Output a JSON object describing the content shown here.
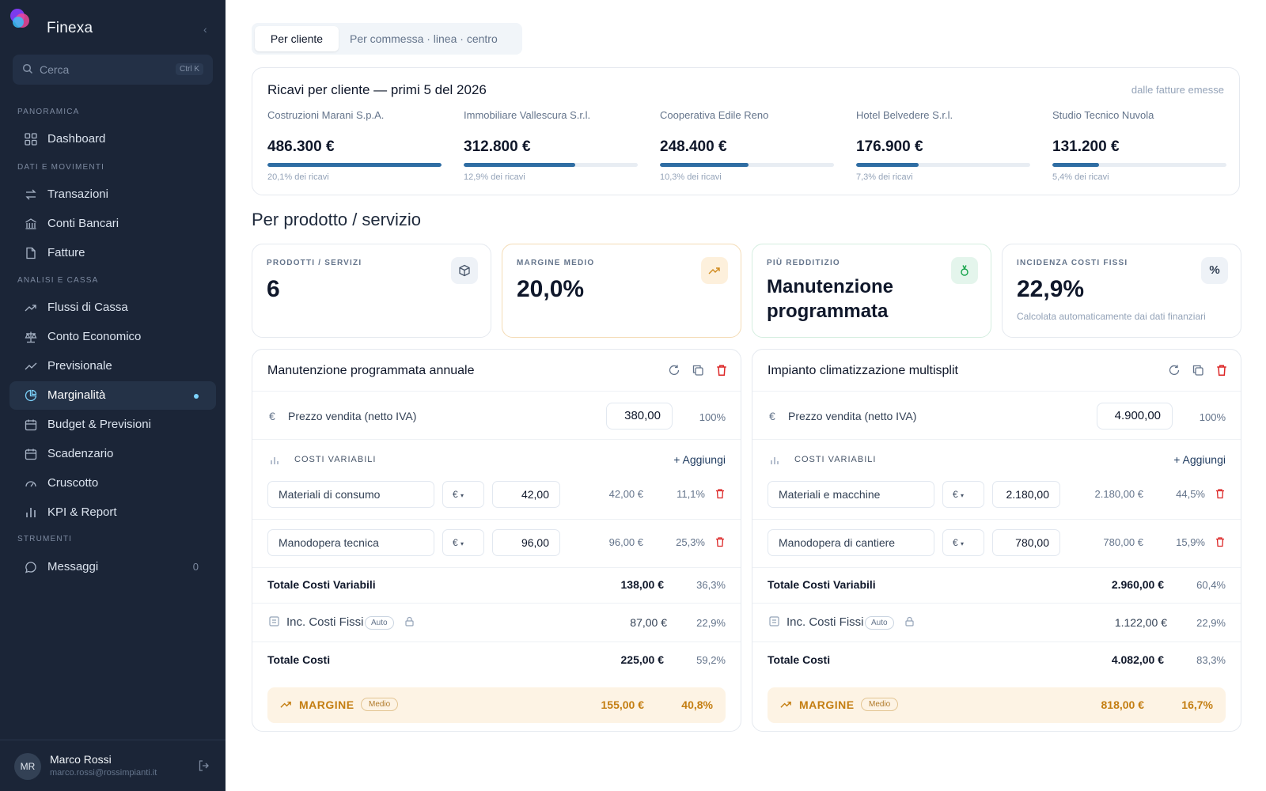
{
  "app": {
    "brand": "Finexa",
    "collapse_icon": "chevron-left-icon"
  },
  "search": {
    "placeholder": "Cerca",
    "shortcut": "Ctrl K"
  },
  "sidebar": {
    "sections": [
      "PANORAMICA",
      "DATI E MOVIMENTI",
      "ANALISI E CASSA",
      "STRUMENTI"
    ],
    "items": [
      {
        "label": "Dashboard",
        "icon": "grid-icon"
      },
      {
        "label": "Transazioni",
        "icon": "arrows-icon"
      },
      {
        "label": "Conti Bancari",
        "icon": "bank-icon"
      },
      {
        "label": "Fatture",
        "icon": "file-icon"
      },
      {
        "label": "Flussi di Cassa",
        "icon": "trend-icon"
      },
      {
        "label": "Conto Economico",
        "icon": "scale-icon"
      },
      {
        "label": "Previsionale",
        "icon": "trend-icon"
      },
      {
        "label": "Marginalità",
        "icon": "pie-icon"
      },
      {
        "label": "Budget & Previsioni",
        "icon": "calendar-icon"
      },
      {
        "label": "Scadenzario",
        "icon": "calendar-icon"
      },
      {
        "label": "Cruscotto",
        "icon": "gauge-icon"
      },
      {
        "label": "KPI & Report",
        "icon": "bar-chart-icon"
      },
      {
        "label": "Messaggi",
        "icon": "chat-icon",
        "count": "0"
      }
    ]
  },
  "user": {
    "initials": "MR",
    "name": "Marco Rossi",
    "email": "marco.rossi@rossimpianti.it"
  },
  "tabs": [
    "Per cliente",
    "Per commessa · linea · centro"
  ],
  "revenue": {
    "title": "Ricavi per cliente — primi 5 del 2026",
    "note": "dalle fatture emesse",
    "clients": [
      {
        "name": "Costruzioni Marani S.p.A.",
        "value": "486.300 €",
        "share": "20,1% dei ricavi",
        "fill": 1.0
      },
      {
        "name": "Immobiliare Vallescura S.r.l.",
        "value": "312.800 €",
        "share": "12,9% dei ricavi",
        "fill": 0.64
      },
      {
        "name": "Cooperativa Edile Reno",
        "value": "248.400 €",
        "share": "10,3% dei ricavi",
        "fill": 0.51
      },
      {
        "name": "Hotel Belvedere S.r.l.",
        "value": "176.900 €",
        "share": "7,3% dei ricavi",
        "fill": 0.36
      },
      {
        "name": "Studio Tecnico Nuvola",
        "value": "131.200 €",
        "share": "5,4% dei ricavi",
        "fill": 0.27
      }
    ]
  },
  "products_title": "Per prodotto / servizio",
  "kpis": [
    {
      "label": "PRODOTTI / SERVIZI",
      "value": "6",
      "icon": "box-icon"
    },
    {
      "label": "MARGINE MEDIO",
      "value": "20,0%",
      "icon": "trend-up-icon"
    },
    {
      "label": "PIÙ REDDITIZIO",
      "value": "Manutenzione programmata",
      "icon": "medal-icon"
    },
    {
      "label": "INCIDENZA COSTI FISSI",
      "value": "22,9%",
      "sub": "Calcolata automaticamente dai dati finanziari",
      "icon": "percent-icon"
    }
  ],
  "cards": [
    {
      "title": "Manutenzione programmata annuale",
      "price_label": "Prezzo vendita (netto IVA)",
      "price": "380,00",
      "price_pct": "100%",
      "var_head": "COSTI VARIABILI",
      "add": "+ Aggiungi",
      "costs": [
        {
          "name": "Materiali di consumo",
          "cur": "€",
          "num": "42,00",
          "amt": "42,00 €",
          "pct": "11,1%"
        },
        {
          "name": "Manodopera tecnica",
          "cur": "€",
          "num": "96,00",
          "amt": "96,00 €",
          "pct": "25,3%"
        }
      ],
      "tot_var_label": "Totale Costi Variabili",
      "tot_var": "138,00 €",
      "tot_var_pct": "36,3%",
      "fix_label": "Inc. Costi Fissi",
      "auto": "Auto",
      "fix": "87,00 €",
      "fix_pct": "22,9%",
      "tot_label": "Totale Costi",
      "tot": "225,00 €",
      "tot_pct": "59,2%",
      "margin_label": "MARGINE",
      "margin_badge": "Medio",
      "margin": "155,00 €",
      "margin_pct": "40,8%"
    },
    {
      "title": "Impianto climatizzazione multisplit",
      "price_label": "Prezzo vendita (netto IVA)",
      "price": "4.900,00",
      "price_pct": "100%",
      "var_head": "COSTI VARIABILI",
      "add": "+ Aggiungi",
      "costs": [
        {
          "name": "Materiali e macchine",
          "cur": "€",
          "num": "2.180,00",
          "amt": "2.180,00 €",
          "pct": "44,5%"
        },
        {
          "name": "Manodopera di cantiere",
          "cur": "€",
          "num": "780,00",
          "amt": "780,00 €",
          "pct": "15,9%"
        }
      ],
      "tot_var_label": "Totale Costi Variabili",
      "tot_var": "2.960,00 €",
      "tot_var_pct": "60,4%",
      "fix_label": "Inc. Costi Fissi",
      "auto": "Auto",
      "fix": "1.122,00 €",
      "fix_pct": "22,9%",
      "tot_label": "Totale Costi",
      "tot": "4.082,00 €",
      "tot_pct": "83,3%",
      "margin_label": "MARGINE",
      "margin_badge": "Medio",
      "margin": "818,00 €",
      "margin_pct": "16,7%"
    }
  ],
  "colors": {
    "sidebar": "#1b2537",
    "accent": "#2f6da3",
    "margin": "#c47e12",
    "danger": "#dc2626"
  }
}
